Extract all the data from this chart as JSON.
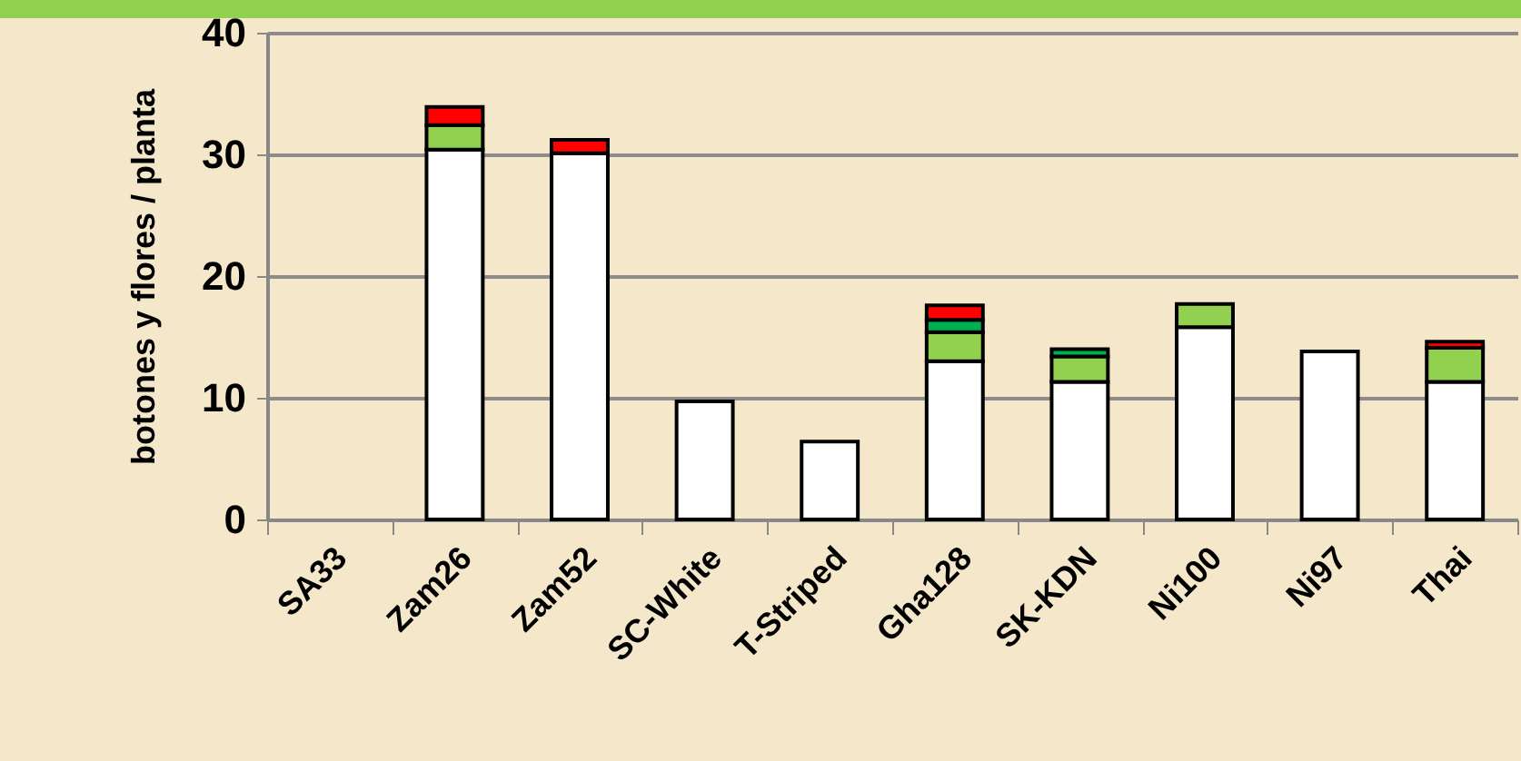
{
  "chart_data": {
    "type": "bar",
    "stacked": true,
    "ylabel": "botones  y flores / planta",
    "categories": [
      "SA33",
      "Zam26",
      "Zam52",
      "SC-White",
      "T-Striped",
      "Gha128",
      "SK-KDN",
      "Ni100",
      "Ni97",
      "Thai"
    ],
    "series": [
      {
        "color": "#ffffff",
        "values": [
          null,
          30.4,
          30.1,
          9.7,
          6.4,
          13.0,
          11.3,
          15.8,
          13.8,
          11.3
        ]
      },
      {
        "color": "#92d050",
        "values": [
          null,
          2.0,
          null,
          null,
          null,
          2.4,
          2.1,
          1.9,
          null,
          2.8
        ]
      },
      {
        "color": "#00b050",
        "values": [
          null,
          null,
          null,
          null,
          null,
          1.0,
          0.6,
          null,
          null,
          null
        ]
      },
      {
        "color": "#ff0000",
        "values": [
          null,
          1.5,
          1.1,
          null,
          null,
          1.2,
          null,
          null,
          null,
          0.5
        ]
      }
    ],
    "ylim": [
      0,
      40
    ],
    "yticks": [
      0,
      10,
      20,
      30,
      40
    ],
    "grid": "y"
  }
}
